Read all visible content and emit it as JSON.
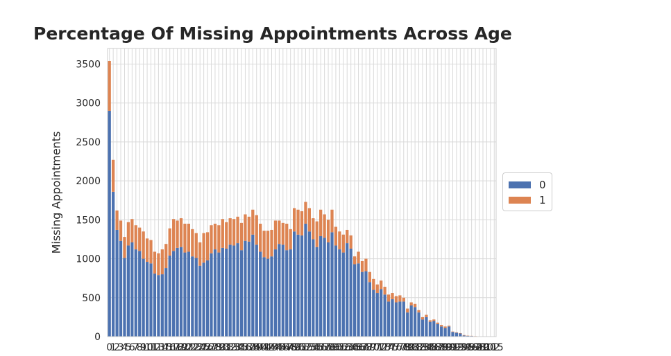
{
  "chart_data": {
    "type": "bar",
    "stacked": true,
    "title": "Percentage Of Missing Appointments Across Age",
    "xlabel": "",
    "ylabel": "Missing Appointments",
    "ylim": [
      0,
      3700
    ],
    "yticks": [
      0,
      500,
      1000,
      1500,
      2000,
      2500,
      3000,
      3500
    ],
    "grid": true,
    "legend_position": "center-right",
    "categories": [
      "0",
      "1",
      "2",
      "3",
      "4",
      "5",
      "6",
      "7",
      "8",
      "9",
      "10",
      "11",
      "12",
      "13",
      "14",
      "15",
      "16",
      "17",
      "18",
      "19",
      "20",
      "21",
      "22",
      "23",
      "24",
      "25",
      "26",
      "27",
      "28",
      "29",
      "30",
      "31",
      "32",
      "33",
      "34",
      "35",
      "36",
      "37",
      "38",
      "39",
      "40",
      "41",
      "42",
      "43",
      "44",
      "45",
      "46",
      "47",
      "48",
      "49",
      "50",
      "51",
      "52",
      "53",
      "54",
      "55",
      "56",
      "57",
      "58",
      "59",
      "60",
      "61",
      "62",
      "63",
      "64",
      "65",
      "66",
      "67",
      "68",
      "69",
      "70",
      "71",
      "72",
      "73",
      "74",
      "75",
      "76",
      "77",
      "78",
      "79",
      "80",
      "81",
      "82",
      "83",
      "84",
      "85",
      "86",
      "87",
      "88",
      "89",
      "90",
      "91",
      "92",
      "93",
      "94",
      "95",
      "96",
      "97",
      "98",
      "99",
      "100",
      "102",
      "115"
    ],
    "series": [
      {
        "name": "0",
        "color": "#4c72b0",
        "values": [
          2900,
          1860,
          1370,
          1230,
          1010,
          1170,
          1210,
          1120,
          1100,
          1000,
          960,
          940,
          810,
          790,
          800,
          880,
          1040,
          1100,
          1140,
          1150,
          1080,
          1090,
          1030,
          1010,
          910,
          950,
          980,
          1070,
          1120,
          1080,
          1140,
          1130,
          1180,
          1170,
          1200,
          1110,
          1230,
          1220,
          1310,
          1180,
          1090,
          1020,
          1000,
          1030,
          1120,
          1190,
          1180,
          1110,
          1120,
          1350,
          1310,
          1300,
          1450,
          1350,
          1250,
          1150,
          1290,
          1270,
          1210,
          1340,
          1170,
          1120,
          1080,
          1200,
          1130,
          930,
          940,
          830,
          840,
          700,
          600,
          560,
          610,
          540,
          450,
          480,
          440,
          450,
          450,
          310,
          400,
          380,
          310,
          220,
          250,
          190,
          200,
          160,
          130,
          110,
          130,
          60,
          50,
          40,
          15,
          10,
          8,
          4,
          2,
          2,
          1,
          1,
          1
        ]
      },
      {
        "name": "1",
        "color": "#dd8452",
        "values": [
          640,
          410,
          250,
          260,
          270,
          300,
          300,
          310,
          300,
          350,
          300,
          300,
          280,
          280,
          320,
          310,
          350,
          410,
          350,
          370,
          370,
          360,
          350,
          320,
          300,
          380,
          360,
          360,
          330,
          350,
          370,
          340,
          340,
          340,
          340,
          350,
          340,
          320,
          320,
          380,
          360,
          340,
          360,
          340,
          370,
          300,
          280,
          340,
          260,
          300,
          320,
          310,
          280,
          300,
          270,
          330,
          340,
          300,
          290,
          290,
          240,
          230,
          230,
          170,
          170,
          100,
          150,
          140,
          160,
          130,
          140,
          110,
          110,
          100,
          90,
          80,
          80,
          80,
          50,
          50,
          40,
          40,
          30,
          30,
          30,
          20,
          20,
          20,
          20,
          20,
          10,
          5,
          5,
          5,
          5,
          3,
          2,
          2,
          2,
          1,
          1,
          1,
          1
        ]
      }
    ]
  }
}
